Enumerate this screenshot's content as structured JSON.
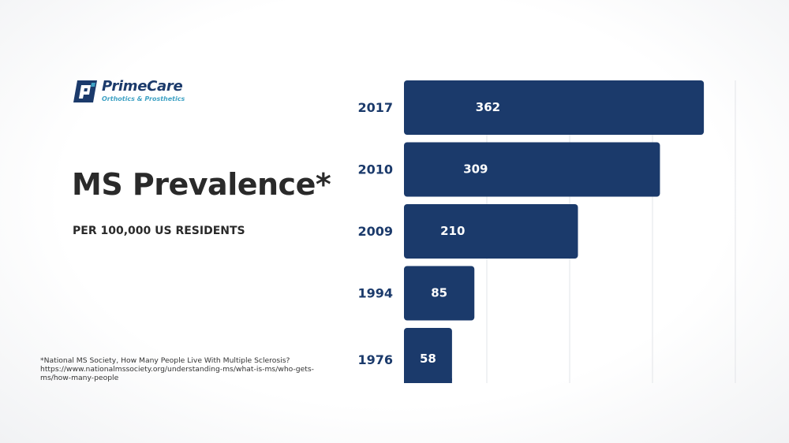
{
  "logo": {
    "name": "PrimeCare",
    "tagline": "Orthotics & Prosthetics"
  },
  "heading": {
    "title": "MS Prevalence*",
    "subtitle": "PER 100,000 US RESIDENTS"
  },
  "footnote": {
    "lines": [
      "*National MS Society, How Many People Live With Multiple Sclerosis?",
      "https://www.nationalmssociety.org/understanding-ms/what-is-ms/who-gets-",
      "ms/how-many-people"
    ]
  },
  "colors": {
    "bar": "#1b3a6b",
    "label": "#1b3a6b",
    "grid": "#e2e4e8"
  },
  "chart_data": {
    "type": "bar",
    "orientation": "horizontal",
    "categories": [
      "2017",
      "2010",
      "2009",
      "1994",
      "1976"
    ],
    "values": [
      362,
      309,
      210,
      85,
      58
    ],
    "title": "",
    "xlabel": "",
    "ylabel": "",
    "xlim": [
      0,
      400
    ],
    "grid": true,
    "legend": "none",
    "data_labels": true
  }
}
